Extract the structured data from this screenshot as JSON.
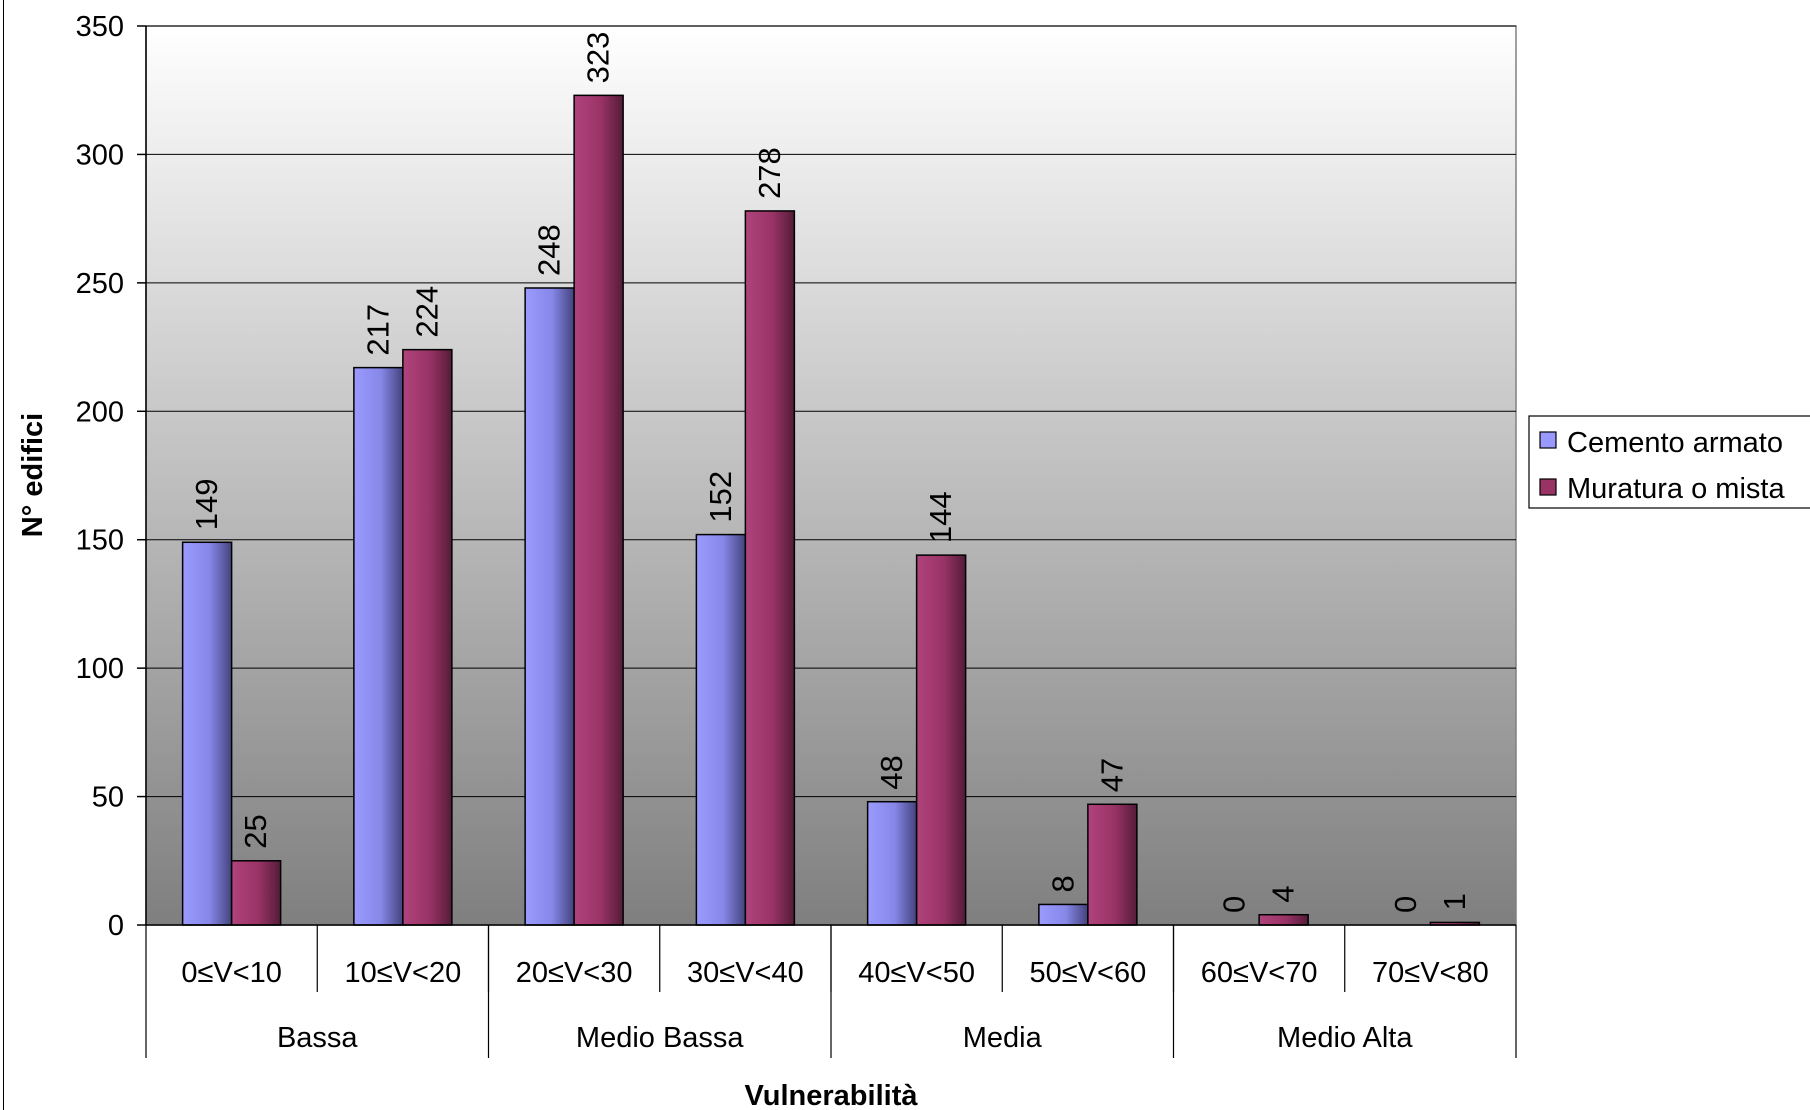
{
  "chart_data": {
    "type": "bar",
    "title": "",
    "xlabel": "Vulnerabilità",
    "ylabel": "N° edifici",
    "ylim": [
      0,
      350
    ],
    "yticks": [
      0,
      50,
      100,
      150,
      200,
      250,
      300,
      350
    ],
    "grid": true,
    "legend_position": "right",
    "categories": [
      "0≤V<10",
      "10≤V<20",
      "20≤V<30",
      "30≤V<40",
      "40≤V<50",
      "50≤V<60",
      "60≤V<70",
      "70≤V<80"
    ],
    "groups": [
      {
        "label": "Bassa",
        "span": 2
      },
      {
        "label": "Medio Bassa",
        "span": 2
      },
      {
        "label": "Media",
        "span": 2
      },
      {
        "label": "Medio Alta",
        "span": 2
      }
    ],
    "series": [
      {
        "name": "Cemento armato",
        "color": "#9999ff",
        "values": [
          149,
          217,
          248,
          152,
          48,
          8,
          0,
          0
        ]
      },
      {
        "name": "Muratura o mista",
        "color": "#993366",
        "values": [
          25,
          224,
          323,
          278,
          144,
          47,
          4,
          1
        ]
      }
    ],
    "data_labels": true
  }
}
